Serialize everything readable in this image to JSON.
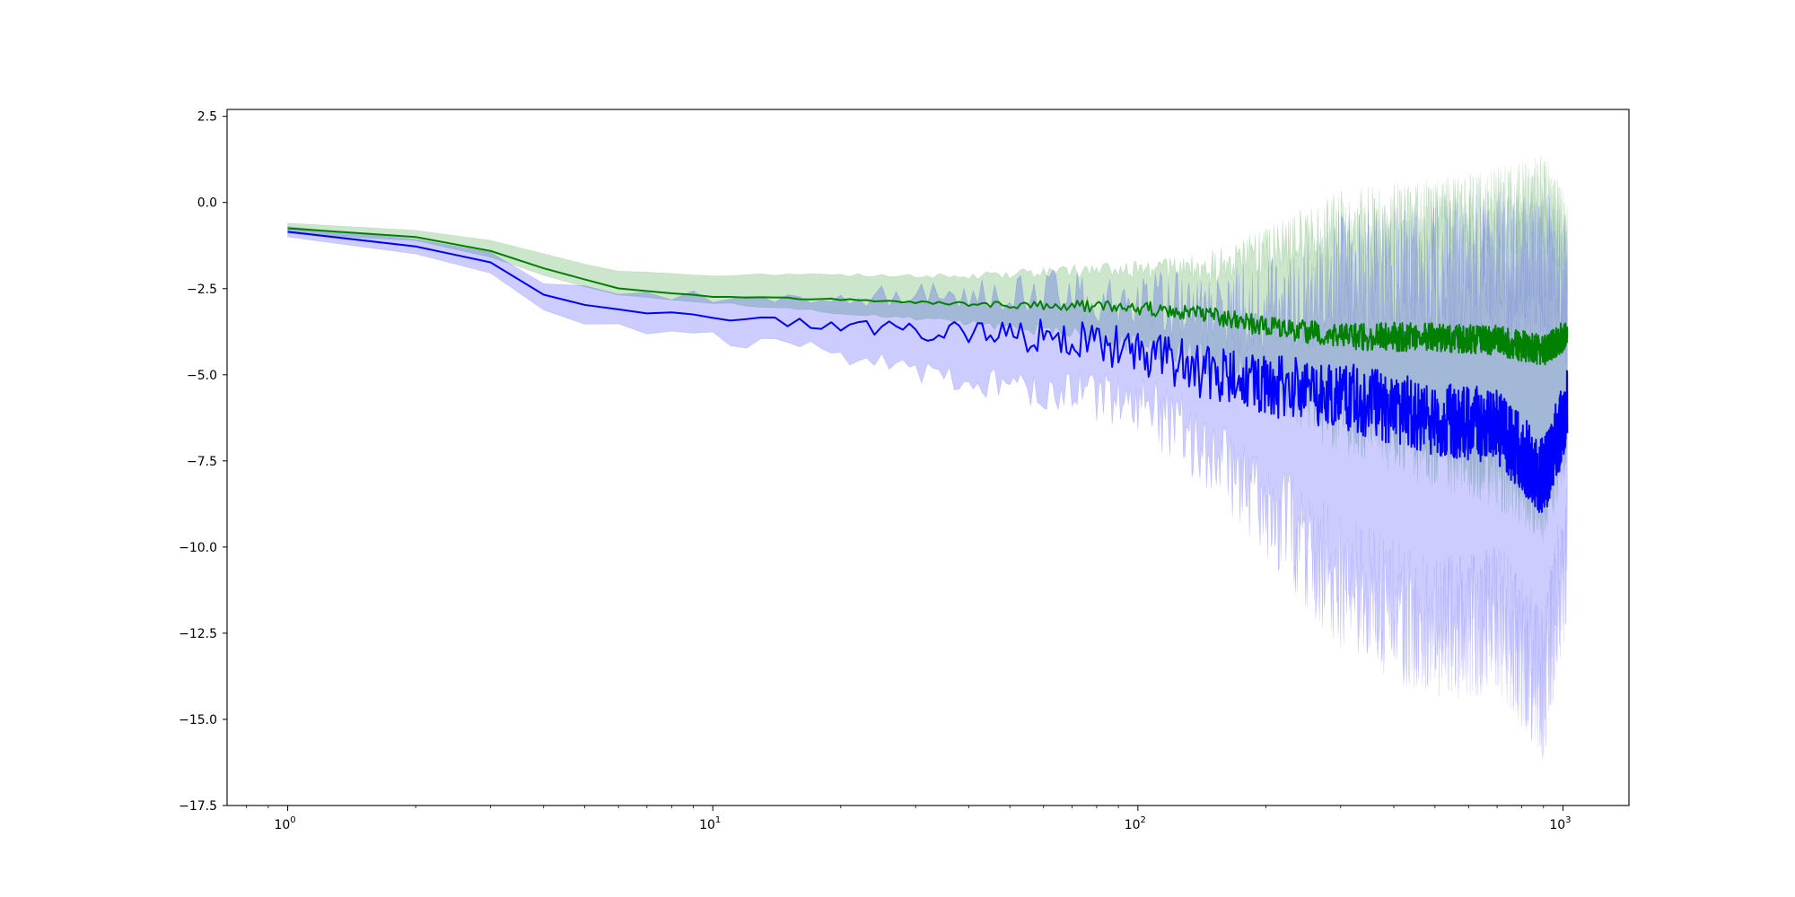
{
  "chart_data": {
    "type": "line",
    "title": "",
    "xlabel": "",
    "ylabel": "",
    "xscale": "log",
    "xlim": [
      0.72,
      1430
    ],
    "ylim": [
      -17.5,
      2.7
    ],
    "x_ticks": [
      {
        "value": 1,
        "base": "10",
        "exp": "0"
      },
      {
        "value": 10,
        "base": "10",
        "exp": "1"
      },
      {
        "value": 100,
        "base": "10",
        "exp": "2"
      },
      {
        "value": 1000,
        "base": "10",
        "exp": "3"
      }
    ],
    "y_ticks": [
      {
        "value": 2.5,
        "label": "2.5"
      },
      {
        "value": 0.0,
        "label": "0.0"
      },
      {
        "value": -2.5,
        "label": "−2.5"
      },
      {
        "value": -5.0,
        "label": "−5.0"
      },
      {
        "value": -7.5,
        "label": "−7.5"
      },
      {
        "value": -10.0,
        "label": "−10.0"
      },
      {
        "value": -12.5,
        "label": "−12.5"
      },
      {
        "value": -15.0,
        "label": "−15.0"
      },
      {
        "value": -17.5,
        "label": "−17.5"
      }
    ],
    "grid": false,
    "legend": "none",
    "x_range": [
      1,
      1024
    ],
    "series": [
      {
        "color": "#008000",
        "band_color": "#008000",
        "band_opacity": 0.2,
        "line": [
          [
            1,
            -0.75
          ],
          [
            2,
            -1.0
          ],
          [
            3,
            -1.4
          ],
          [
            4,
            -1.9
          ],
          [
            6,
            -2.5
          ],
          [
            10,
            -2.72
          ],
          [
            20,
            -2.82
          ],
          [
            40,
            -2.95
          ],
          [
            70,
            -3.0
          ],
          [
            100,
            -3.05
          ],
          [
            150,
            -3.3
          ],
          [
            200,
            -3.6
          ],
          [
            300,
            -3.9
          ],
          [
            500,
            -3.9
          ],
          [
            700,
            -4.0
          ],
          [
            900,
            -4.3
          ],
          [
            1024,
            -3.8
          ]
        ],
        "upper": [
          [
            1,
            -0.6
          ],
          [
            2,
            -0.8
          ],
          [
            3,
            -1.1
          ],
          [
            4,
            -1.5
          ],
          [
            6,
            -2.0
          ],
          [
            10,
            -2.1
          ],
          [
            20,
            -2.1
          ],
          [
            40,
            -2.15
          ],
          [
            70,
            -2.0
          ],
          [
            100,
            -2.0
          ],
          [
            150,
            -1.9
          ],
          [
            200,
            -1.4
          ],
          [
            300,
            -0.8
          ],
          [
            500,
            -0.6
          ],
          [
            700,
            -0.3
          ],
          [
            900,
            0.0
          ],
          [
            1024,
            -1.2
          ]
        ],
        "lower": [
          [
            1,
            -0.9
          ],
          [
            2,
            -1.1
          ],
          [
            3,
            -1.6
          ],
          [
            4,
            -2.1
          ],
          [
            6,
            -2.7
          ],
          [
            10,
            -2.9
          ],
          [
            20,
            -3.2
          ],
          [
            40,
            -3.5
          ],
          [
            70,
            -3.8
          ],
          [
            100,
            -4.1
          ],
          [
            150,
            -4.6
          ],
          [
            200,
            -5.2
          ],
          [
            300,
            -6.2
          ],
          [
            500,
            -7.0
          ],
          [
            700,
            -7.6
          ],
          [
            900,
            -8.5
          ],
          [
            1024,
            -6.5
          ]
        ],
        "noise": [
          [
            1,
            0.0
          ],
          [
            30,
            0.03
          ],
          [
            70,
            0.15
          ],
          [
            100,
            0.2
          ],
          [
            200,
            0.3
          ],
          [
            400,
            0.42
          ],
          [
            1024,
            0.45
          ]
        ],
        "band_noise": [
          [
            1,
            0.0
          ],
          [
            30,
            0.05
          ],
          [
            70,
            0.2
          ],
          [
            100,
            0.3
          ],
          [
            200,
            0.7
          ],
          [
            300,
            1.2
          ],
          [
            1024,
            1.4
          ]
        ]
      },
      {
        "color": "#0000ff",
        "band_color": "#0000ff",
        "band_opacity": 0.2,
        "line": [
          [
            1,
            -0.85
          ],
          [
            2,
            -1.25
          ],
          [
            3,
            -1.75
          ],
          [
            4,
            -2.7
          ],
          [
            6,
            -3.15
          ],
          [
            10,
            -3.35
          ],
          [
            20,
            -3.6
          ],
          [
            40,
            -3.8
          ],
          [
            70,
            -3.9
          ],
          [
            100,
            -4.3
          ],
          [
            150,
            -5.0
          ],
          [
            200,
            -5.3
          ],
          [
            300,
            -5.6
          ],
          [
            500,
            -6.3
          ],
          [
            700,
            -6.5
          ],
          [
            900,
            -8.0
          ],
          [
            1024,
            -6.0
          ]
        ],
        "upper": [
          [
            1,
            -0.7
          ],
          [
            2,
            -1.05
          ],
          [
            3,
            -1.45
          ],
          [
            4,
            -2.3
          ],
          [
            6,
            -2.7
          ],
          [
            10,
            -2.75
          ],
          [
            20,
            -2.8
          ],
          [
            40,
            -2.6
          ],
          [
            70,
            -2.6
          ],
          [
            100,
            -2.9
          ],
          [
            150,
            -3.2
          ],
          [
            200,
            -2.9
          ],
          [
            300,
            -2.2
          ],
          [
            500,
            -2.0
          ],
          [
            700,
            -1.8
          ],
          [
            900,
            -1.8
          ],
          [
            1024,
            -2.5
          ]
        ],
        "lower": [
          [
            1,
            -1.0
          ],
          [
            2,
            -1.45
          ],
          [
            3,
            -2.05
          ],
          [
            4,
            -3.2
          ],
          [
            6,
            -3.6
          ],
          [
            10,
            -3.9
          ],
          [
            20,
            -4.4
          ],
          [
            40,
            -5.2
          ],
          [
            70,
            -5.5
          ],
          [
            100,
            -5.8
          ],
          [
            150,
            -7.2
          ],
          [
            200,
            -8.8
          ],
          [
            300,
            -11.0
          ],
          [
            500,
            -12.5
          ],
          [
            700,
            -12.0
          ],
          [
            900,
            -14.0
          ],
          [
            1024,
            -10.0
          ]
        ],
        "noise": [
          [
            1,
            0.0
          ],
          [
            12,
            0.12
          ],
          [
            30,
            0.25
          ],
          [
            70,
            0.6
          ],
          [
            100,
            0.7
          ],
          [
            200,
            0.9
          ],
          [
            400,
            1.05
          ],
          [
            1024,
            1.15
          ]
        ],
        "band_noise": [
          [
            1,
            0.0
          ],
          [
            12,
            0.2
          ],
          [
            30,
            0.35
          ],
          [
            70,
            0.7
          ],
          [
            100,
            0.9
          ],
          [
            200,
            1.5
          ],
          [
            300,
            2.0
          ],
          [
            1024,
            2.3
          ]
        ]
      }
    ]
  }
}
